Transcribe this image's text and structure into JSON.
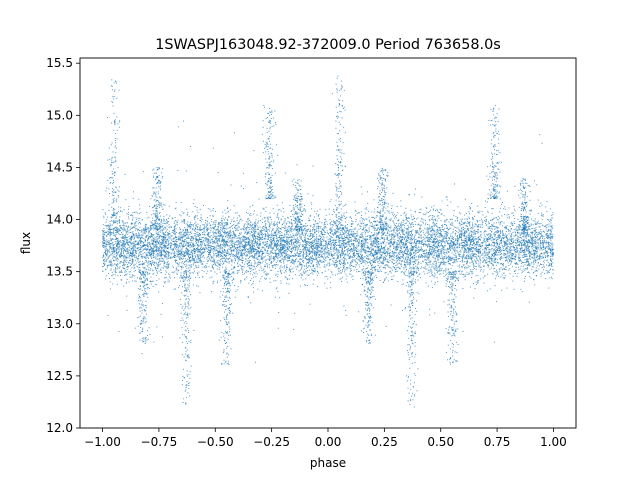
{
  "chart_data": {
    "type": "scatter",
    "title": "1SWASPJ163048.92-372009.0 Period 763658.0s",
    "xlabel": "phase",
    "ylabel": "flux",
    "xlim": [
      -1.1,
      1.1
    ],
    "ylim": [
      12.0,
      15.55
    ],
    "x_ticks": [
      -1.0,
      -0.75,
      -0.5,
      -0.25,
      0.0,
      0.25,
      0.5,
      0.75,
      1.0
    ],
    "x_tick_labels": [
      "−1.00",
      "−0.75",
      "−0.50",
      "−0.25",
      "0.00",
      "0.25",
      "0.50",
      "0.75",
      "1.00"
    ],
    "y_ticks": [
      12.0,
      12.5,
      13.0,
      13.5,
      14.0,
      14.5,
      15.0,
      15.5
    ],
    "y_tick_labels": [
      "12.0",
      "12.5",
      "13.0",
      "13.5",
      "14.0",
      "14.5",
      "15.0",
      "15.5"
    ],
    "grid": false,
    "marker_color": "#1f77b4",
    "series": [
      {
        "phase_range": [
          -1.0,
          1.0
        ],
        "baseline_flux": 13.75,
        "typical_scatter": 0.15,
        "point_count_approx": 12000,
        "notable_features": [
          {
            "phase": -0.95,
            "flux_min": 13.9,
            "flux_max": 15.4
          },
          {
            "phase": 0.05,
            "flux_min": 13.9,
            "flux_max": 15.4
          },
          {
            "phase": -0.26,
            "flux_min": 14.2,
            "flux_max": 15.1
          },
          {
            "phase": 0.74,
            "flux_min": 14.2,
            "flux_max": 15.1
          },
          {
            "phase": -0.76,
            "flux_min": 13.9,
            "flux_max": 14.5
          },
          {
            "phase": 0.24,
            "flux_min": 13.9,
            "flux_max": 14.5
          },
          {
            "phase": -0.13,
            "flux_min": 13.9,
            "flux_max": 14.4
          },
          {
            "phase": 0.87,
            "flux_min": 13.9,
            "flux_max": 14.4
          },
          {
            "phase": -0.63,
            "flux_min": 12.2,
            "flux_max": 13.5
          },
          {
            "phase": 0.37,
            "flux_min": 12.2,
            "flux_max": 13.5
          },
          {
            "phase": -0.45,
            "flux_min": 12.6,
            "flux_max": 13.5
          },
          {
            "phase": 0.55,
            "flux_min": 12.6,
            "flux_max": 13.5
          },
          {
            "phase": -0.82,
            "flux_min": 12.8,
            "flux_max": 13.5
          },
          {
            "phase": 0.18,
            "flux_min": 12.8,
            "flux_max": 13.5
          }
        ]
      }
    ]
  }
}
